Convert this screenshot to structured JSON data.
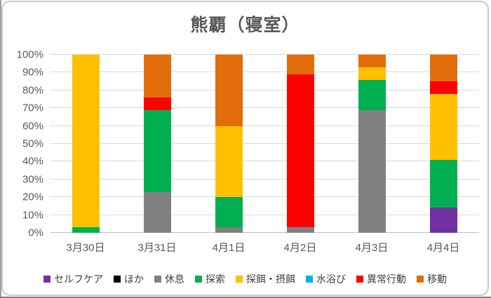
{
  "window": {
    "background": "#FFFFFF",
    "frame_border_color": "#C9C9C9",
    "text_color": "#595959",
    "gridline_color": "#D9D9D9"
  },
  "chart_data": {
    "type": "bar",
    "stacked": true,
    "percent_stacked": true,
    "title": "熊覇（寝室）",
    "categories": [
      "3月30日",
      "3月31日",
      "4月1日",
      "4月2日",
      "4月3日",
      "4月4日"
    ],
    "series": [
      {
        "name": "セルフケア",
        "color": "#7030A0",
        "values": [
          0,
          0,
          0,
          0,
          0,
          14
        ]
      },
      {
        "name": "ほか",
        "color": "#000000",
        "values": [
          0,
          0,
          0,
          0,
          0,
          0
        ]
      },
      {
        "name": "休息",
        "color": "#808080",
        "values": [
          0,
          23,
          3,
          3,
          69,
          0
        ]
      },
      {
        "name": "探索",
        "color": "#00B050",
        "values": [
          3,
          46,
          17,
          0,
          17,
          27
        ]
      },
      {
        "name": "探餌・摂餌",
        "color": "#FFC000",
        "values": [
          97,
          0,
          40,
          0,
          7,
          37
        ]
      },
      {
        "name": "水浴び",
        "color": "#00B0F0",
        "values": [
          0,
          0,
          0,
          0,
          0,
          0
        ]
      },
      {
        "name": "異常行動",
        "color": "#FF0000",
        "values": [
          0,
          7,
          0,
          86,
          0,
          7
        ]
      },
      {
        "name": "移動",
        "color": "#E36C0A",
        "values": [
          0,
          24,
          40,
          11,
          7,
          15
        ]
      }
    ],
    "y_ticks": [
      "0%",
      "10%",
      "20%",
      "30%",
      "40%",
      "50%",
      "60%",
      "70%",
      "80%",
      "90%",
      "100%"
    ],
    "ylim": [
      0,
      100
    ],
    "grid": true,
    "legend_position": "bottom"
  }
}
